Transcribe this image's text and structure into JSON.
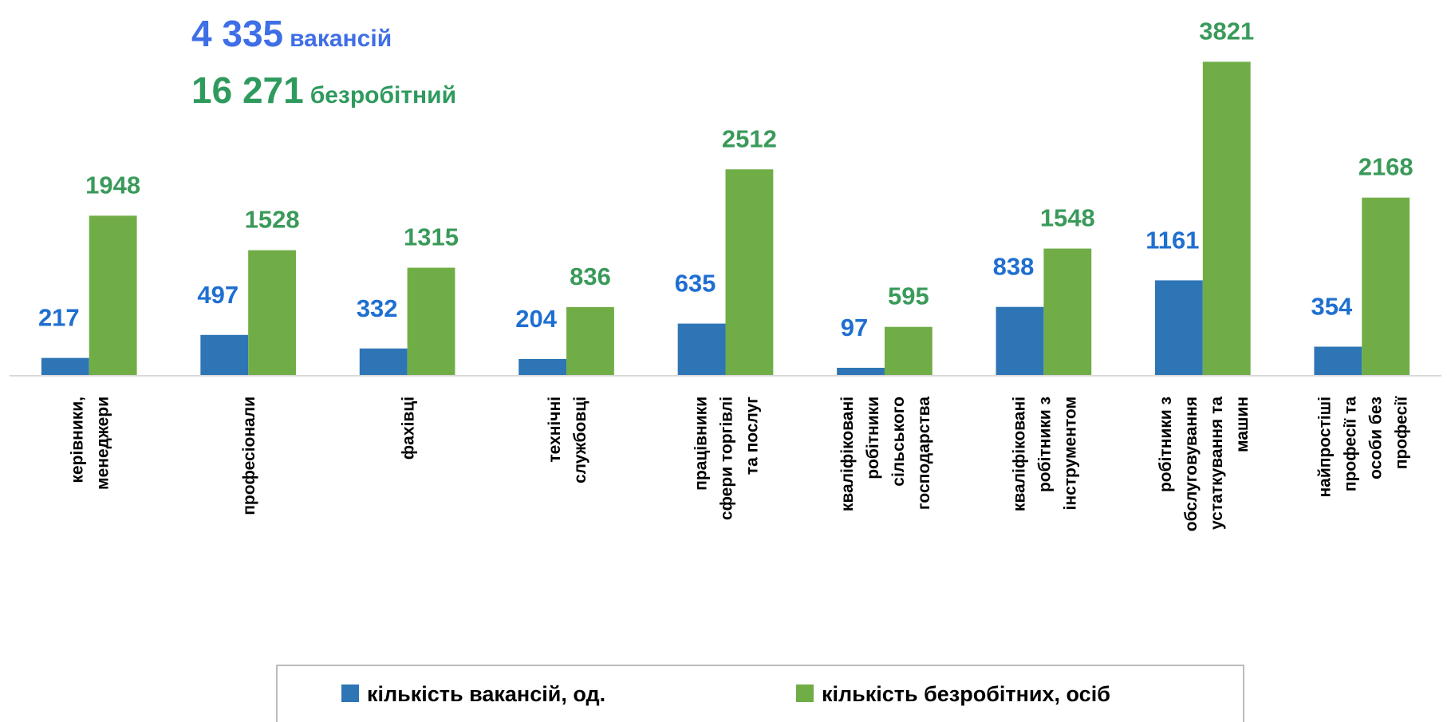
{
  "chart_data": {
    "type": "bar",
    "annotations": [
      {
        "number": "4 335",
        "text": "вакансій",
        "color": "#3f6fe6"
      },
      {
        "number": "16 271",
        "text": "безробітний",
        "color": "#2f9a5e"
      }
    ],
    "categories": [
      [
        "керівники,",
        "менеджери"
      ],
      [
        "професіонали"
      ],
      [
        "фахівці"
      ],
      [
        "технічні",
        "службовці"
      ],
      [
        "працівники",
        "сфери торгівлі",
        "та послуг"
      ],
      [
        "кваліфіковані",
        "робітники",
        "сільського",
        "господарства"
      ],
      [
        "кваліфіковані",
        "робітники з",
        "інструментом"
      ],
      [
        "робітники з",
        "обслуговування",
        "устаткування та",
        "машин"
      ],
      [
        "найпростіші",
        "професії та",
        "особи без",
        "професії"
      ]
    ],
    "series": [
      {
        "name": "кількість вакансій, од.",
        "color": "#2e75b6",
        "label_color": "#1f6fd0",
        "values": [
          217,
          497,
          332,
          204,
          635,
          97,
          838,
          1161,
          354
        ]
      },
      {
        "name": "кількість безробітних, осіб",
        "color": "#70ad47",
        "label_color": "#3a9a5a",
        "values": [
          1948,
          1528,
          1315,
          836,
          2512,
          595,
          1548,
          3821,
          2168
        ]
      }
    ],
    "ylim": [
      0,
      4000
    ]
  }
}
